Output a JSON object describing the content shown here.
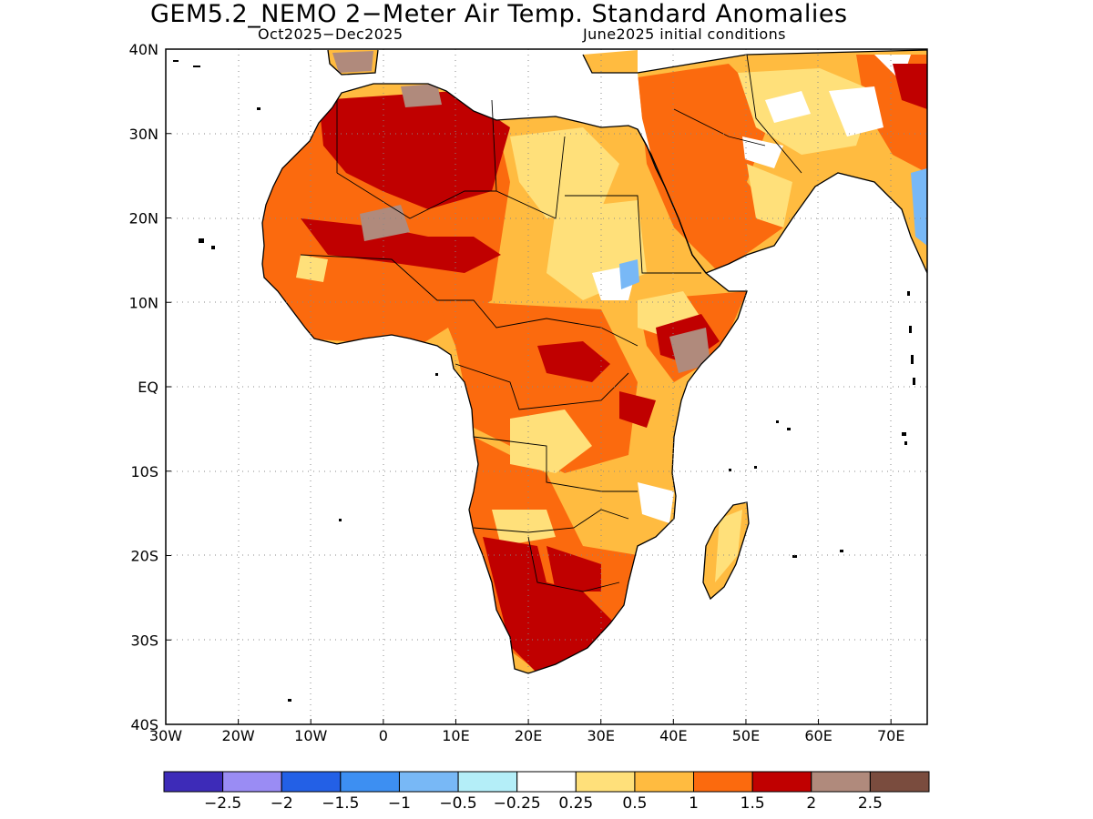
{
  "title": "GEM5.2_NEMO 2−Meter Air Temp. Standard Anomalies",
  "subtitle_left": "Oct2025−Dec2025",
  "subtitle_right": "June2025 initial conditions",
  "lon_ticks": [
    "30W",
    "20W",
    "10W",
    "0",
    "10E",
    "20E",
    "30E",
    "40E",
    "50E",
    "60E",
    "70E"
  ],
  "lat_ticks": [
    "40N",
    "30N",
    "20N",
    "10N",
    "EQ",
    "10S",
    "20S",
    "30S",
    "40S"
  ],
  "colorbar": {
    "colors": [
      "#3d2bb8",
      "#9a8cf4",
      "#2360e6",
      "#3d8ff2",
      "#78b8f6",
      "#b4eef8",
      "#ffffff",
      "#ffe07a",
      "#ffbb40",
      "#fb6a0e",
      "#c00000",
      "#b08a7c",
      "#7a4c3e"
    ],
    "labels": [
      "−2.5",
      "−2",
      "−1.5",
      "−1",
      "−0.5",
      "−0.25",
      "0.25",
      "0.5",
      "1",
      "1.5",
      "2",
      "2.5"
    ]
  },
  "map": {
    "region": "Africa",
    "extent_lon": [
      -30,
      75
    ],
    "extent_lat": [
      -40,
      40
    ]
  }
}
